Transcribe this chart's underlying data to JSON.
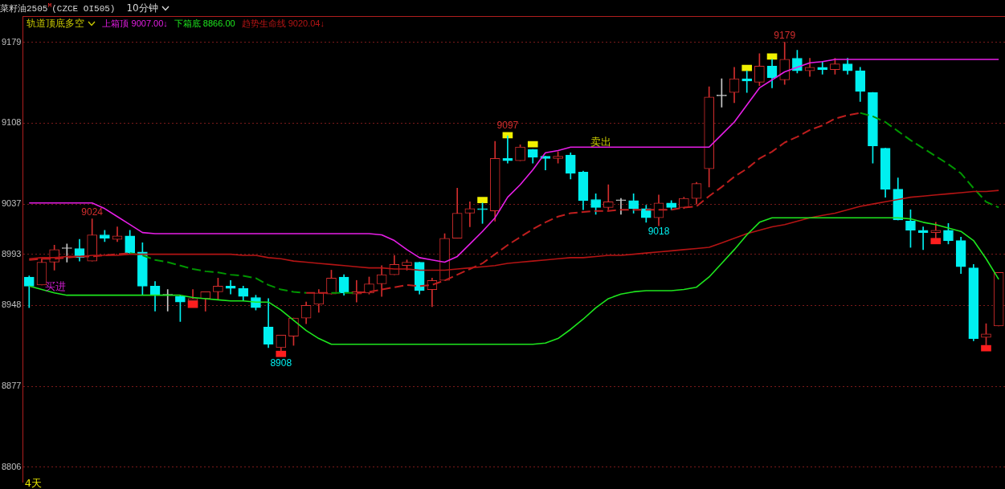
{
  "chart_data": {
    "type": "candlestick",
    "title": "菜籽油2505$^{M}$(CZCE OI505)",
    "subtitle": "10分钟",
    "legend_title": "轨道顶底多空",
    "categories": [
      null,
      null,
      null,
      null,
      null,
      null,
      null,
      null,
      null,
      null,
      null,
      null,
      null,
      null,
      null,
      null,
      null,
      null,
      null,
      null,
      null,
      null,
      null,
      null,
      null,
      null,
      null,
      null,
      null,
      null,
      null,
      null,
      null,
      null,
      null,
      null,
      null,
      null,
      null,
      null,
      null,
      null,
      null,
      null,
      null,
      null,
      null,
      null,
      null,
      null,
      null,
      null,
      null,
      null,
      null,
      null,
      null,
      null,
      null,
      null,
      null,
      null,
      null,
      null,
      null,
      null,
      null,
      null,
      null,
      null,
      null,
      null,
      null,
      null,
      null,
      null,
      null,
      null
    ],
    "ohlc": [
      [
        8973,
        8974,
        8946,
        8965
      ],
      [
        8966,
        8989,
        8966,
        8986
      ],
      [
        8986,
        9001,
        8979,
        8997
      ],
      [
        8998,
        9002,
        8986,
        8998
      ],
      [
        8998,
        9006,
        8987,
        8990
      ],
      [
        8987,
        9024,
        8987,
        9010
      ],
      [
        9010,
        9014,
        9004,
        9007
      ],
      [
        9006,
        9017,
        9004,
        9009
      ],
      [
        9009,
        9014,
        8993,
        8994
      ],
      [
        8995,
        9003,
        8957,
        8965
      ],
      [
        8965,
        8969,
        8943,
        8957
      ],
      [
        8957,
        8962,
        8943,
        8957
      ],
      [
        8956,
        8957,
        8934,
        8951
      ],
      [
        8952,
        8962,
        8952,
        8954
      ],
      [
        8954,
        8960,
        8943,
        8960
      ],
      [
        8960,
        8972,
        8953,
        8965
      ],
      [
        8965,
        8970,
        8958,
        8963
      ],
      [
        8963,
        8965,
        8952,
        8956
      ],
      [
        8955,
        8957,
        8944,
        8946
      ],
      [
        8929,
        8954,
        8911,
        8914
      ],
      [
        8911,
        8922,
        8908,
        8922
      ],
      [
        8921,
        8937,
        8913,
        8937
      ],
      [
        8937,
        8951,
        8932,
        8948
      ],
      [
        8949,
        8962,
        8942,
        8959
      ],
      [
        8958,
        8979,
        8958,
        8972
      ],
      [
        8973,
        8975,
        8957,
        8959
      ],
      [
        8958,
        8970,
        8951,
        8960
      ],
      [
        8959,
        8973,
        8958,
        8967
      ],
      [
        8967,
        8983,
        8956,
        8975
      ],
      [
        8975,
        8992,
        8975,
        8984
      ],
      [
        8983,
        8988,
        8979,
        8986
      ],
      [
        8986,
        8986,
        8958,
        8961
      ],
      [
        8962,
        8972,
        8947,
        8970
      ],
      [
        8970,
        9011,
        8970,
        9007
      ],
      [
        9007,
        9051,
        9007,
        9029
      ],
      [
        9029,
        9039,
        9017,
        9033
      ],
      [
        9033,
        9038,
        9020,
        9032
      ],
      [
        9031,
        9092,
        9022,
        9077
      ],
      [
        9077,
        9097,
        9073,
        9075
      ],
      [
        9075,
        9089,
        9075,
        9087
      ],
      [
        9085,
        9085,
        9073,
        9078
      ],
      [
        9079,
        9079,
        9067,
        9077
      ],
      [
        9077,
        9083,
        9073,
        9079
      ],
      [
        9080,
        9082,
        9059,
        9064
      ],
      [
        9065,
        9066,
        9032,
        9040
      ],
      [
        9041,
        9046,
        9028,
        9034
      ],
      [
        9034,
        9054,
        9032,
        9039
      ],
      [
        9040,
        9042,
        9028,
        9040
      ],
      [
        9040,
        9046,
        9029,
        9033
      ],
      [
        9033,
        9036,
        9021,
        9025
      ],
      [
        9025,
        9045,
        9018,
        9038
      ],
      [
        9038,
        9040,
        9032,
        9034
      ],
      [
        9034,
        9043,
        9033,
        9042
      ],
      [
        9042,
        9056,
        9037,
        9055
      ],
      [
        9068,
        9140,
        9052,
        9131
      ],
      [
        9132,
        9147,
        9122,
        9132
      ],
      [
        9135,
        9157,
        9126,
        9147
      ],
      [
        9147,
        9154,
        9135,
        9145
      ],
      [
        9144,
        9169,
        9141,
        9158
      ],
      [
        9158,
        9164,
        9139,
        9148
      ],
      [
        9146,
        9179,
        9142,
        9164
      ],
      [
        9165,
        9172,
        9152,
        9154
      ],
      [
        9154,
        9165,
        9149,
        9157
      ],
      [
        9157,
        9162,
        9151,
        9155
      ],
      [
        9155,
        9165,
        9151,
        9160
      ],
      [
        9160,
        9165,
        9151,
        9154
      ],
      [
        9154,
        9157,
        9127,
        9136
      ],
      [
        9135,
        9135,
        9073,
        9088
      ],
      [
        9086,
        9086,
        9043,
        9050
      ],
      [
        9050,
        9060,
        9023,
        9023
      ],
      [
        9022,
        9032,
        8999,
        9014
      ],
      [
        9014,
        9017,
        8997,
        9012
      ],
      [
        9012,
        9021,
        9007,
        9014
      ],
      [
        9014,
        9020,
        9002,
        9005
      ],
      [
        9005,
        9008,
        8976,
        8982
      ],
      [
        8981,
        8984,
        8917,
        8919
      ],
      [
        8920,
        8932,
        8913,
        8923
      ],
      [
        8930,
        8977,
        8930,
        8977
      ]
    ],
    "colors": [
      "#00f0f0",
      "#d22d2d",
      "#d22d2d",
      "#c8c8c8",
      "#00f0f0",
      "#d22d2d",
      "#00f0f0",
      "#d22d2d",
      "#00f0f0",
      "#00f0f0",
      "#00f0f0",
      "#c8c8c8",
      "#00f0f0",
      "#d22d2d",
      "#d22d2d",
      "#d22d2d",
      "#00f0f0",
      "#00f0f0",
      "#00f0f0",
      "#00f0f0",
      "#d22d2d",
      "#d22d2d",
      "#d22d2d",
      "#d22d2d",
      "#d22d2d",
      "#00f0f0",
      "#d22d2d",
      "#d22d2d",
      "#d22d2d",
      "#d22d2d",
      "#d22d2d",
      "#00f0f0",
      "#d22d2d",
      "#d22d2d",
      "#d22d2d",
      "#d22d2d",
      "#00f0f0",
      "#d22d2d",
      "#00f0f0",
      "#d22d2d",
      "#00f0f0",
      "#00f0f0",
      "#d22d2d",
      "#00f0f0",
      "#00f0f0",
      "#00f0f0",
      "#d22d2d",
      "#c8c8c8",
      "#00f0f0",
      "#00f0f0",
      "#d22d2d",
      "#00f0f0",
      "#d22d2d",
      "#d22d2d",
      "#d22d2d",
      "#c8c8c8",
      "#d22d2d",
      "#00f0f0",
      "#d22d2d",
      "#00f0f0",
      "#d22d2d",
      "#00f0f0",
      "#d22d2d",
      "#00f0f0",
      "#d22d2d",
      "#00f0f0",
      "#00f0f0",
      "#00f0f0",
      "#00f0f0",
      "#00f0f0",
      "#00f0f0",
      "#00f0f0",
      "#d22d2d",
      "#00f0f0",
      "#00f0f0",
      "#00f0f0",
      "#d22d2d",
      "#d22d2d"
    ],
    "series": [
      {
        "name": "上箱顶 9007.00↓",
        "type": "line",
        "color": "#e61ee6",
        "values": [
          9038,
          9038,
          9038,
          9038,
          9038,
          9038,
          9033,
          9026,
          9019,
          9012,
          9011,
          9011,
          9011,
          9011,
          9011,
          9011,
          9011,
          9011,
          9011,
          9011,
          9011,
          9011,
          9011,
          9011,
          9011,
          9011,
          9011,
          9011,
          9010,
          9005,
          8997,
          8990,
          8988,
          8986,
          8991,
          9002,
          9013,
          9025,
          9043,
          9054,
          9067,
          9082,
          9084,
          9087,
          9087,
          9087,
          9087,
          9087,
          9087,
          9087,
          9087,
          9087,
          9087,
          9087,
          9087,
          9098,
          9109,
          9124,
          9139,
          9146,
          9153,
          9157,
          9161,
          9162,
          9164,
          9164,
          9164,
          9164,
          9164,
          9164,
          9164,
          9164,
          9164,
          9164,
          9164,
          9164,
          9164,
          9164
        ]
      },
      {
        "name": "下箱底 8866.00",
        "type": "line",
        "color": "#1ee61e",
        "values": [
          8965,
          8962,
          8959,
          8957,
          8957,
          8957,
          8957,
          8957,
          8957,
          8957,
          8957,
          8957,
          8957,
          8955,
          8954,
          8953,
          8952,
          8952,
          8951,
          8951,
          8944,
          8935,
          8926,
          8919,
          8914,
          8914,
          8914,
          8914,
          8914,
          8914,
          8914,
          8914,
          8914,
          8914,
          8914,
          8914,
          8914,
          8914,
          8914,
          8914,
          8914,
          8915,
          8919,
          8927,
          8936,
          8946,
          8954,
          8958,
          8960,
          8961,
          8961,
          8961,
          8962,
          8964,
          8973,
          8985,
          8997,
          9010,
          9021,
          9025,
          9025,
          9025,
          9025,
          9025,
          9025,
          9025,
          9025,
          9025,
          9025,
          9025,
          9024,
          9021,
          9019,
          9016,
          9013,
          9005,
          8989,
          8971
        ]
      },
      {
        "name": "趋势生命线 9020.04↓",
        "type": "line",
        "color": "#b41414",
        "values": [
          8989,
          8990,
          8990,
          8991,
          8991,
          8992,
          8992,
          8992,
          8993,
          8993,
          8993,
          8993,
          8993,
          8993,
          8993,
          8993,
          8993,
          8992,
          8992,
          8990,
          8989,
          8987,
          8986,
          8985,
          8984,
          8983,
          8982,
          8981,
          8981,
          8980,
          8980,
          8979,
          8979,
          8979,
          8980,
          8981,
          8982,
          8983,
          8985,
          8986,
          8987,
          8988,
          8989,
          8990,
          8990,
          8991,
          8992,
          8992,
          8993,
          8994,
          8995,
          8996,
          8997,
          8998,
          8999,
          9003,
          9007,
          9011,
          9014,
          9017,
          9019,
          9022,
          9025,
          9027,
          9029,
          9032,
          9035,
          9037,
          9039,
          9041,
          9043,
          9044,
          9045,
          9046,
          9047,
          9048,
          9048,
          9049
        ]
      },
      {
        "type": "line",
        "line_style": "dashed",
        "color": "#009600",
        "values": [
          null,
          null,
          null,
          null,
          null,
          null,
          null,
          null,
          8994,
          8992,
          8988,
          8986,
          8983,
          8980,
          8978,
          8977,
          8975,
          8974,
          8972,
          8966,
          8962,
          8960,
          8959,
          null,
          8959,
          8959,
          8959,
          null,
          null,
          null,
          null,
          null,
          null,
          null,
          null,
          null,
          null,
          null,
          null,
          null,
          null,
          null,
          null,
          null,
          null,
          null,
          null,
          null,
          null,
          null,
          null,
          null,
          null,
          null,
          null,
          null,
          null,
          null,
          null,
          null,
          null,
          null,
          null,
          null,
          null,
          null,
          9117,
          9114,
          9109,
          9101,
          9093,
          9086,
          9079,
          9072,
          9064,
          9051,
          9039,
          9034
        ]
      },
      {
        "type": "line",
        "line_style": "dashed",
        "color": "#be1e1e",
        "values": [
          8988,
          8989,
          8989,
          8990,
          8991,
          8991,
          8992,
          8993,
          8994,
          null,
          null,
          null,
          null,
          null,
          null,
          null,
          null,
          null,
          null,
          null,
          null,
          null,
          8959,
          8959,
          8959,
          null,
          8959,
          8960,
          8962,
          8964,
          8966,
          8965,
          8966,
          8970,
          8975,
          8980,
          8985,
          8993,
          9001,
          9008,
          9015,
          9021,
          9026,
          9029,
          9030,
          9031,
          9031,
          9032,
          9032,
          9032,
          9032,
          9032,
          9034,
          9035,
          9044,
          9052,
          9061,
          9068,
          9077,
          9083,
          9091,
          9096,
          9102,
          9106,
          9112,
          9115,
          9117,
          null,
          null,
          null,
          null,
          null,
          null,
          null,
          null,
          null,
          null,
          null
        ]
      },
      {
        "type": "bar",
        "color": "#f0f000",
        "base": [
          null,
          null,
          null,
          null,
          null,
          null,
          null,
          null,
          null,
          null,
          null,
          null,
          null,
          null,
          null,
          null,
          null,
          null,
          null,
          null,
          null,
          null,
          null,
          null,
          null,
          null,
          null,
          null,
          null,
          null,
          null,
          null,
          null,
          null,
          null,
          null,
          9038,
          null,
          9095,
          null,
          9087,
          null,
          null,
          null,
          null,
          null,
          null,
          null,
          null,
          null,
          null,
          null,
          null,
          null,
          null,
          null,
          null,
          9154,
          null,
          9164,
          null,
          null,
          null,
          null,
          null,
          null,
          null,
          null,
          null,
          null,
          null,
          null,
          null,
          null,
          null,
          null,
          null,
          null
        ],
        "values": [
          null,
          null,
          null,
          null,
          null,
          null,
          null,
          null,
          null,
          null,
          null,
          null,
          null,
          null,
          null,
          null,
          null,
          null,
          null,
          null,
          null,
          null,
          null,
          null,
          null,
          null,
          null,
          null,
          null,
          null,
          null,
          null,
          null,
          null,
          null,
          null,
          5,
          null,
          5,
          null,
          5,
          null,
          null,
          null,
          null,
          null,
          null,
          null,
          null,
          null,
          null,
          null,
          null,
          null,
          null,
          null,
          null,
          5,
          null,
          5,
          null,
          null,
          null,
          null,
          null,
          null,
          null,
          null,
          null,
          null,
          null,
          null,
          null,
          null,
          null,
          null,
          null,
          null
        ]
      },
      {
        "type": "bar",
        "color": "#ff1e1e",
        "base": [
          null,
          null,
          null,
          null,
          null,
          null,
          null,
          null,
          null,
          null,
          null,
          null,
          null,
          8946,
          null,
          null,
          null,
          null,
          null,
          null,
          8903,
          null,
          null,
          null,
          null,
          null,
          null,
          null,
          null,
          null,
          null,
          null,
          null,
          null,
          null,
          null,
          null,
          null,
          null,
          null,
          null,
          null,
          null,
          null,
          null,
          null,
          null,
          null,
          null,
          null,
          null,
          null,
          null,
          null,
          null,
          null,
          null,
          null,
          null,
          null,
          null,
          null,
          null,
          null,
          null,
          null,
          null,
          null,
          null,
          null,
          null,
          null,
          9002,
          null,
          null,
          null,
          8908,
          null
        ],
        "values": [
          null,
          null,
          null,
          null,
          null,
          null,
          null,
          null,
          null,
          null,
          null,
          null,
          null,
          6,
          null,
          null,
          null,
          null,
          null,
          null,
          5,
          null,
          null,
          null,
          null,
          null,
          null,
          null,
          null,
          null,
          null,
          null,
          null,
          null,
          null,
          null,
          null,
          null,
          null,
          null,
          null,
          null,
          null,
          null,
          null,
          null,
          null,
          null,
          null,
          null,
          null,
          null,
          null,
          null,
          null,
          null,
          null,
          null,
          null,
          null,
          null,
          null,
          null,
          null,
          null,
          null,
          null,
          null,
          null,
          null,
          null,
          null,
          5,
          null,
          null,
          null,
          5,
          null
        ]
      }
    ],
    "ylim": [
      8793,
      9202
    ],
    "yticks": [
      9179,
      9108,
      9037,
      8993,
      8948,
      8877,
      8806
    ],
    "grid": "y",
    "legend": "top left",
    "annotations": [
      {
        "text": "9024",
        "y": 9024
      },
      {
        "text": "9097",
        "y": 9097
      },
      {
        "text": "9179",
        "y": 9179
      },
      {
        "text": "8908",
        "y": 8908
      },
      {
        "text": "9018",
        "y": 9018
      },
      "买进",
      "卖出",
      "4天"
    ]
  }
}
